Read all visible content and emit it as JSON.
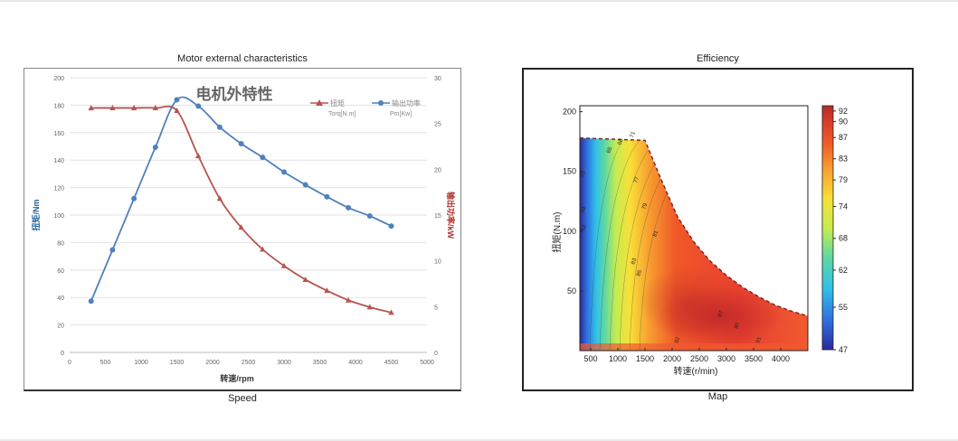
{
  "left_figure": {
    "caption_top": "Motor external characteristics",
    "caption_bottom": "Speed"
  },
  "right_figure": {
    "caption_top": "Efficiency",
    "caption_bottom": "Map"
  },
  "chart_data": [
    {
      "type": "line",
      "title": "电机外特性",
      "xlabel": "转速/rpm",
      "ylabel": "扭矩/Nm",
      "y2label": "输出功率/kW",
      "xlim": [
        0,
        5000
      ],
      "ylim": [
        0,
        200
      ],
      "y2lim": [
        0,
        30
      ],
      "xticks": [
        0,
        500,
        1000,
        1500,
        2000,
        2500,
        3000,
        3500,
        4000,
        4500,
        5000
      ],
      "yticks": [
        0,
        20,
        40,
        60,
        80,
        100,
        120,
        140,
        160,
        180,
        200
      ],
      "y2ticks": [
        0,
        5,
        10,
        15,
        20,
        25,
        30
      ],
      "legend_position": "top-right",
      "grid": true,
      "series": [
        {
          "name": "扭矩",
          "sublabel": "Torq[N.m]",
          "axis": "left",
          "color": "#b85450",
          "marker": "triangle",
          "x": [
            300,
            600,
            900,
            1200,
            1500,
            1800,
            2100,
            2400,
            2700,
            3000,
            3300,
            3600,
            3900,
            4200,
            4500
          ],
          "values": [
            178,
            178,
            178,
            178,
            176,
            143,
            112,
            91,
            75,
            63,
            53,
            45,
            38,
            33,
            29
          ]
        },
        {
          "name": "输出功率",
          "sublabel": "Pm[Kw]",
          "axis": "right",
          "color": "#4f81bd",
          "marker": "circle",
          "x": [
            300,
            600,
            900,
            1200,
            1500,
            1800,
            2100,
            2400,
            2700,
            3000,
            3300,
            3600,
            3900,
            4200,
            4500
          ],
          "values": [
            5.6,
            11.2,
            16.8,
            22.4,
            27.6,
            26.9,
            24.6,
            22.8,
            21.3,
            19.7,
            18.3,
            17.0,
            15.8,
            14.9,
            13.8
          ]
        }
      ]
    },
    {
      "type": "heatmap",
      "xlabel": "转速(r/min)",
      "ylabel": "扭矩(N.m)",
      "xlim": [
        300,
        4500
      ],
      "ylim": [
        0,
        205
      ],
      "xticks": [
        500,
        1000,
        1500,
        2000,
        2500,
        3000,
        3500,
        4000
      ],
      "yticks": [
        50,
        100,
        150,
        200
      ],
      "colorbar_ticks": [
        47,
        55,
        62,
        68,
        74,
        79,
        83,
        87,
        90,
        92
      ],
      "colorbar_range": [
        47,
        93
      ],
      "contour_labels": [
        "55",
        "59",
        "62",
        "65",
        "68",
        "71",
        "77",
        "79",
        "81",
        "83",
        "85",
        "87",
        "90",
        "91",
        "92"
      ],
      "boundary": {
        "x": [
          300,
          1500,
          1800,
          2100,
          2400,
          2700,
          3000,
          3300,
          3600,
          3900,
          4200,
          4500
        ],
        "values": [
          178,
          176,
          143,
          112,
          91,
          75,
          63,
          53,
          45,
          38,
          33,
          29
        ]
      }
    }
  ]
}
